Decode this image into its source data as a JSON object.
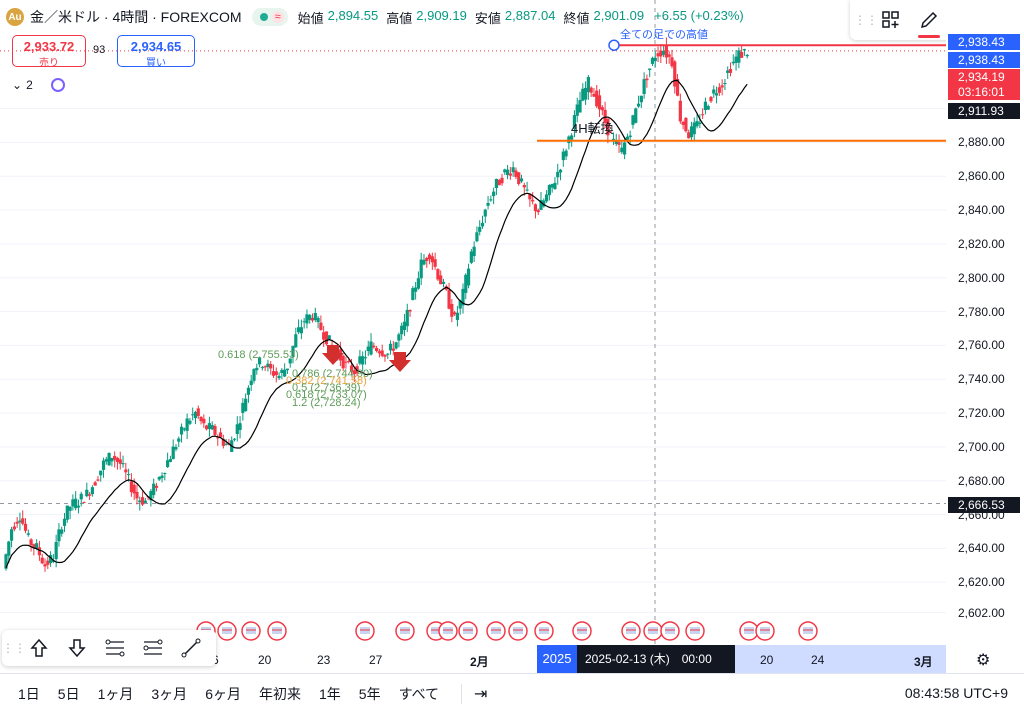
{
  "header": {
    "symbol_title": "金／米ドル · 4時間 · FOREXCOM",
    "status_flag": "≈",
    "ohlc": [
      {
        "label": "始値",
        "value": "2,894.55"
      },
      {
        "label": "高値",
        "value": "2,909.19"
      },
      {
        "label": "安値",
        "value": "2,887.04"
      },
      {
        "label": "終値",
        "value": "2,901.09"
      }
    ],
    "change": "+6.55 (+0.23%)"
  },
  "trade": {
    "sell_price": "2,933.72",
    "sell_label": "売り",
    "spread": "93",
    "buy_price": "2,934.65",
    "buy_label": "買い"
  },
  "indicators_count": "2",
  "draw_toolbar": {
    "width_label": "3px"
  },
  "price_axis": {
    "ticks": [
      "2,900.00",
      "2,880.00",
      "2,860.00",
      "2,840.00",
      "2,820.00",
      "2,800.00",
      "2,780.00",
      "2,760.00",
      "2,740.00",
      "2,720.00",
      "2,700.00",
      "2,680.00",
      "2,660.00",
      "2,640.00",
      "2,620.00",
      "2,602.00"
    ],
    "labels": [
      {
        "text": "2,938.43",
        "color": "#2962ff"
      },
      {
        "text": "2,938.43",
        "color": "#2962ff"
      },
      {
        "text": "2,934.19",
        "color": "#f23645"
      },
      {
        "text": "03:16:01",
        "color": "#f23645"
      },
      {
        "text": "2,911.93",
        "color": "#131722"
      },
      {
        "text": "2,666.53",
        "color": "#131722"
      }
    ]
  },
  "annotations": {
    "all_time_high": "全ての足での高値",
    "h4_conversion": "4H転換",
    "fib_levels": [
      "0.618 (2,755.53)",
      "0.786 (2,744.90)",
      "0.382 (2,741.58)",
      "0.5 (2,736.39)",
      "0.618 (2,733.07)",
      "1.2 (2,728.24)"
    ]
  },
  "time_axis": {
    "ticks": [
      "6",
      "20",
      "23",
      "27",
      "2月",
      "20",
      "24",
      "3月"
    ],
    "year_label": "2025",
    "cursor_date": "2025-02-13 (木)　00:00"
  },
  "bottom_bar": {
    "ranges": [
      "1日",
      "5日",
      "1ヶ月",
      "3ヶ月",
      "6ヶ月",
      "年初来",
      "1年",
      "5年",
      "すべて"
    ],
    "clock": "08:43:58 UTC+9"
  },
  "colors": {
    "up": "#089981",
    "down": "#f23645",
    "orange_line": "#ff6d00",
    "ma_line": "#000000"
  },
  "chart_data": {
    "type": "candlestick",
    "series_name": "XAUUSD 4H",
    "ylim": [
      2600,
      2940
    ],
    "overlays": {
      "ma": "black moving average line",
      "horizontal_levels": [
        {
          "price": 2881,
          "color": "#ff6d00",
          "label": "4H転換"
        },
        {
          "price": 2937.5,
          "color": "#f23645",
          "label": "全ての足での高値"
        }
      ],
      "dashed_level": 2666.53
    },
    "close_path": [
      2628,
      2652,
      2660,
      2645,
      2640,
      2630,
      2635,
      2655,
      2665,
      2668,
      2672,
      2680,
      2690,
      2695,
      2690,
      2680,
      2670,
      2668,
      2675,
      2685,
      2695,
      2705,
      2715,
      2720,
      2712,
      2710,
      2705,
      2700,
      2712,
      2730,
      2748,
      2750,
      2745,
      2742,
      2748,
      2765,
      2775,
      2778,
      2770,
      2762,
      2755,
      2748,
      2745,
      2752,
      2760,
      2758,
      2755,
      2762,
      2772,
      2790,
      2808,
      2815,
      2802,
      2790,
      2775,
      2790,
      2815,
      2830,
      2845,
      2855,
      2862,
      2865,
      2855,
      2845,
      2840,
      2848,
      2858,
      2872,
      2888,
      2905,
      2915,
      2905,
      2892,
      2880,
      2875,
      2888,
      2905,
      2920,
      2932,
      2935,
      2928,
      2895,
      2885,
      2890,
      2902,
      2910,
      2915,
      2925,
      2932,
      2934
    ]
  },
  "event_icons_count": 24
}
